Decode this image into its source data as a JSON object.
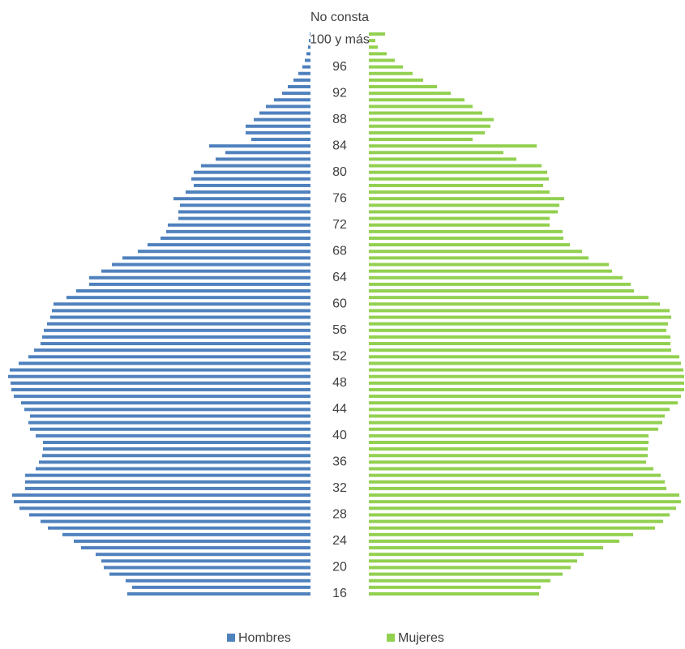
{
  "chart_data": {
    "type": "pyramid",
    "categories": [
      "16",
      null,
      null,
      null,
      "20",
      null,
      null,
      null,
      "24",
      null,
      null,
      null,
      "28",
      null,
      null,
      null,
      "32",
      null,
      null,
      null,
      "36",
      null,
      null,
      null,
      "40",
      null,
      null,
      null,
      "44",
      null,
      null,
      null,
      "48",
      null,
      null,
      null,
      "52",
      null,
      null,
      null,
      "56",
      null,
      null,
      null,
      "60",
      null,
      null,
      null,
      "64",
      null,
      null,
      null,
      "68",
      null,
      null,
      null,
      "72",
      null,
      null,
      null,
      "76",
      null,
      null,
      null,
      "80",
      null,
      null,
      null,
      "84",
      null,
      null,
      null,
      "88",
      null,
      null,
      null,
      "92",
      null,
      null,
      null,
      "96",
      null,
      null,
      null,
      "100 y más",
      "No consta"
    ],
    "series": [
      {
        "name": "Hombres",
        "color": "#4f81bd",
        "values": [
          226,
          220,
          228,
          248,
          255,
          258,
          265,
          283,
          292,
          306,
          324,
          333,
          347,
          359,
          366,
          368,
          352,
          352,
          352,
          339,
          335,
          331,
          330,
          330,
          339,
          346,
          348,
          346,
          353,
          357,
          366,
          369,
          370,
          373,
          371,
          360,
          348,
          341,
          333,
          331,
          329,
          325,
          321,
          319,
          317,
          301,
          289,
          273,
          273,
          258,
          245,
          232,
          213,
          201,
          185,
          178,
          176,
          163,
          163,
          161,
          169,
          154,
          144,
          147,
          144,
          135,
          117,
          105,
          125,
          73,
          80,
          80,
          70,
          63,
          55,
          45,
          35,
          28,
          21,
          15,
          10,
          7,
          5,
          3,
          2,
          1
        ]
      },
      {
        "name": "Mujeres",
        "color": "#92d050",
        "values": [
          210,
          212,
          224,
          239,
          249,
          257,
          265,
          289,
          309,
          326,
          353,
          363,
          371,
          379,
          385,
          383,
          367,
          365,
          360,
          351,
          342,
          344,
          344,
          345,
          345,
          357,
          362,
          365,
          371,
          381,
          385,
          389,
          389,
          389,
          388,
          385,
          383,
          373,
          372,
          372,
          367,
          369,
          373,
          371,
          359,
          345,
          327,
          323,
          313,
          300,
          296,
          271,
          263,
          248,
          240,
          239,
          223,
          223,
          233,
          235,
          241,
          223,
          215,
          222,
          220,
          213,
          182,
          166,
          207,
          128,
          143,
          150,
          154,
          140,
          128,
          118,
          101,
          84,
          67,
          54,
          42,
          32,
          22,
          11,
          8,
          20
        ]
      }
    ]
  }
}
